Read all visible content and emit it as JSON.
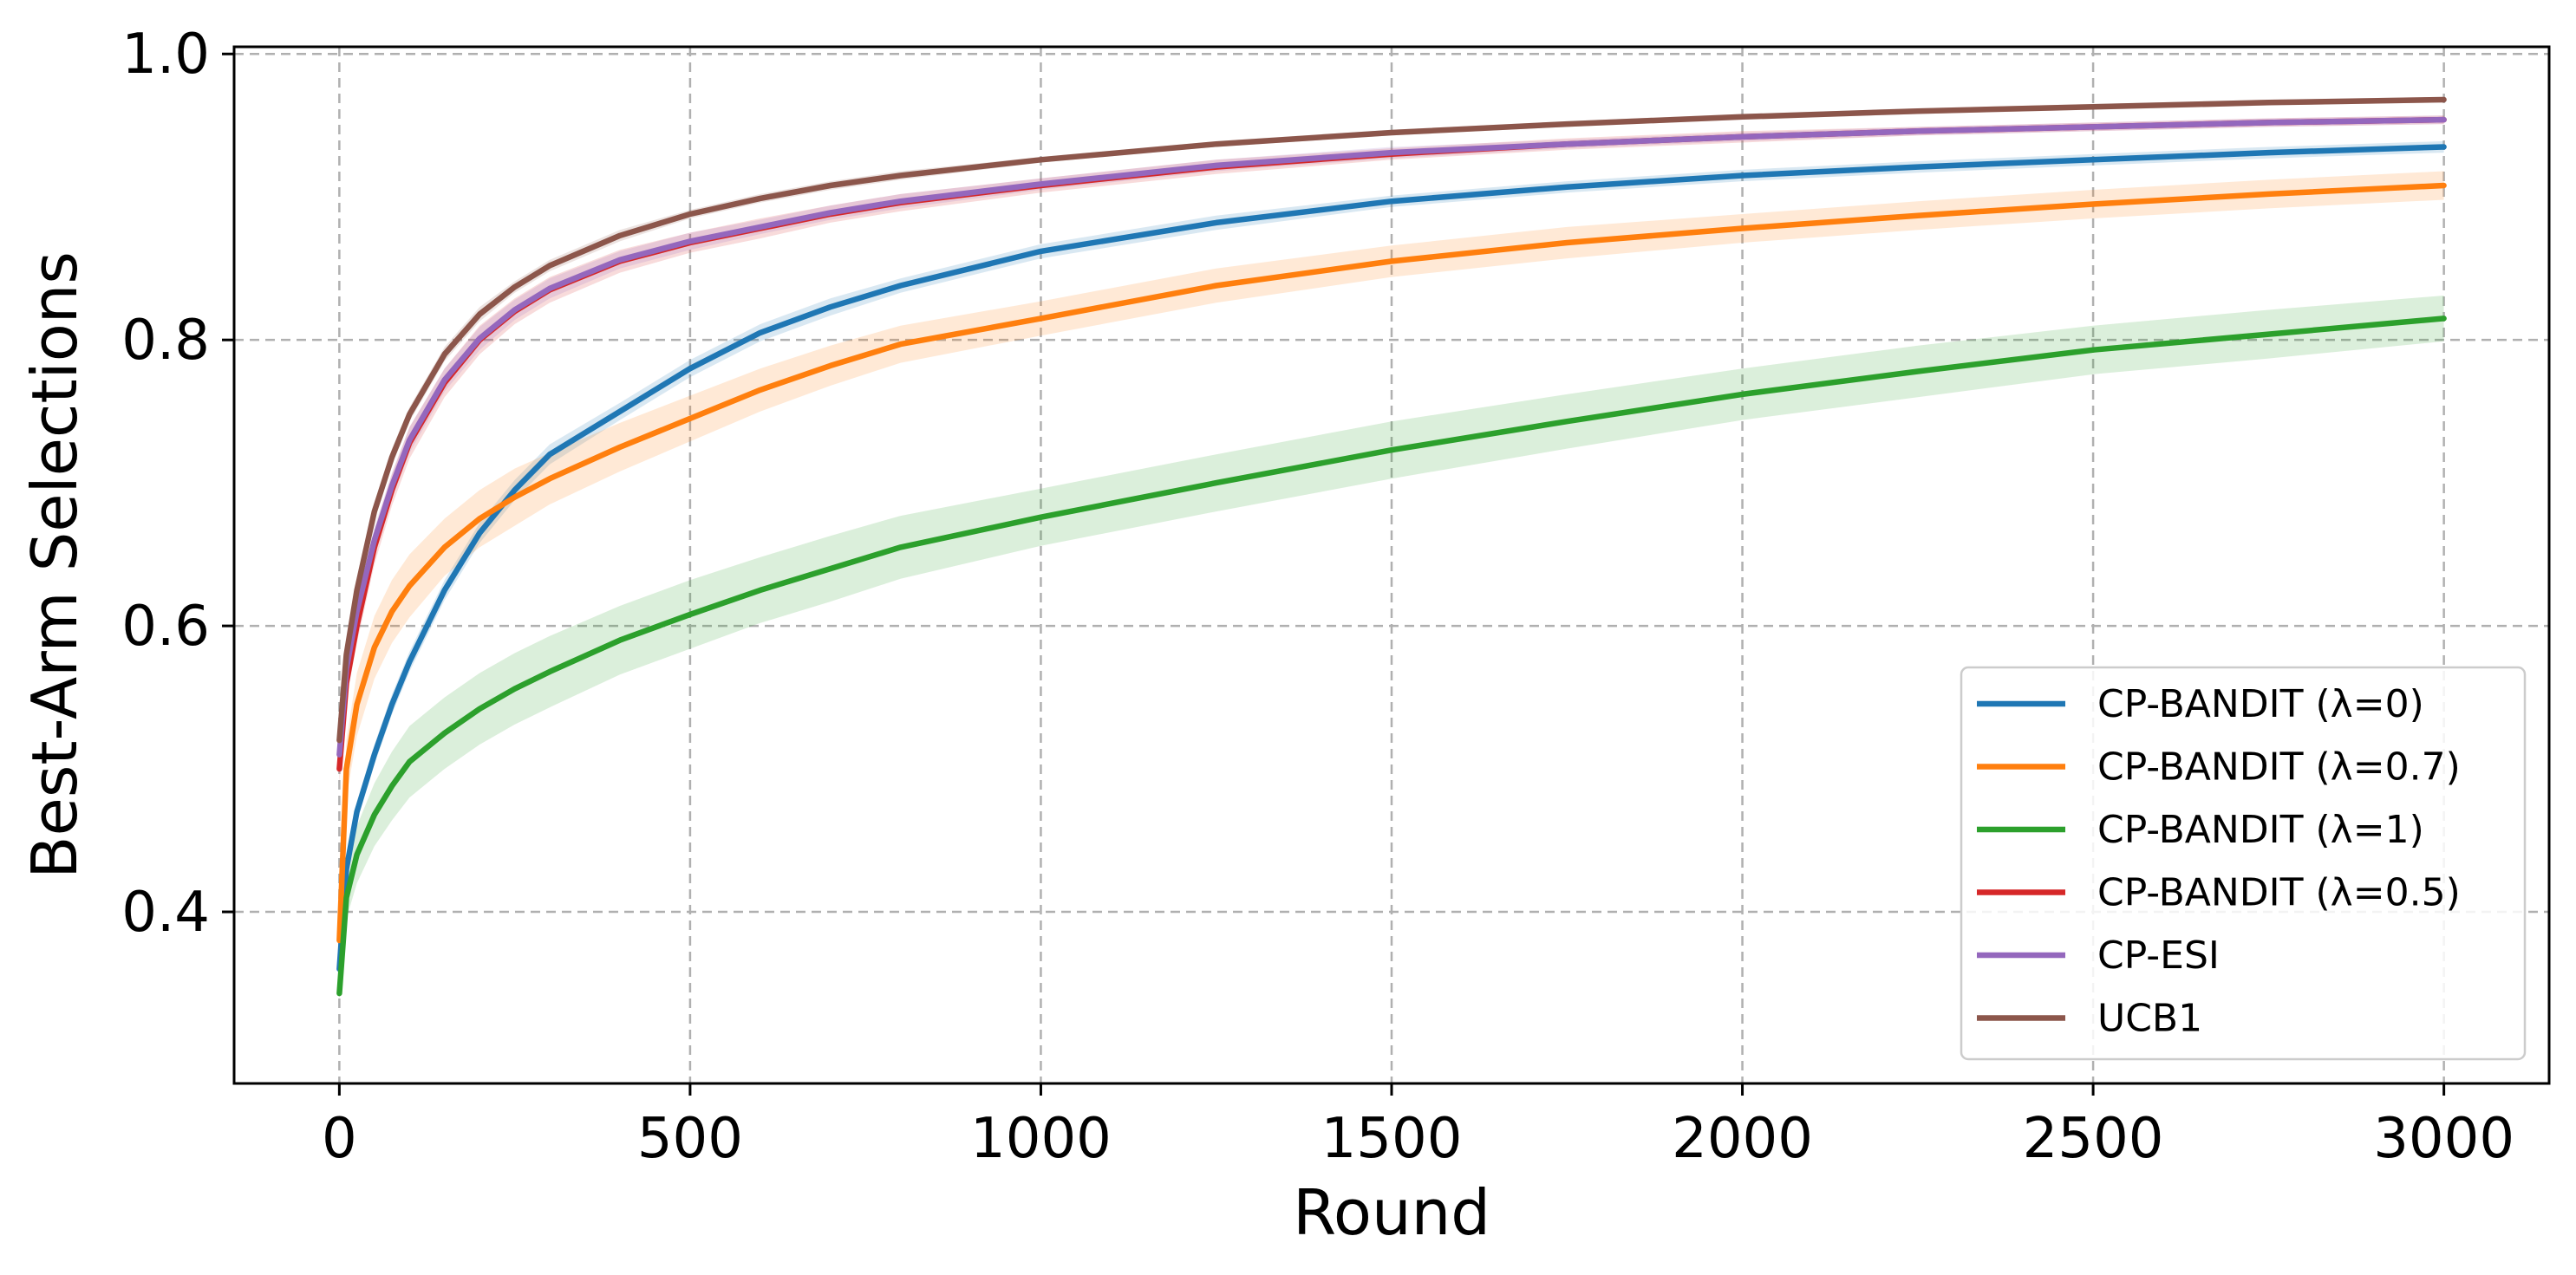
{
  "chart_data": {
    "type": "line",
    "title": "",
    "xlabel": "Round",
    "ylabel": "Best-Arm Selections",
    "xlim": [
      -150,
      3150
    ],
    "ylim": [
      0.28,
      1.005
    ],
    "x_ticks": [
      0,
      500,
      1000,
      1500,
      2000,
      2500,
      3000
    ],
    "x_tick_labels": [
      "0",
      "500",
      "1000",
      "1500",
      "2000",
      "2500",
      "3000"
    ],
    "y_ticks": [
      0.4,
      0.6,
      0.8,
      1.0
    ],
    "y_tick_labels": [
      "0.4",
      "0.6",
      "0.8",
      "1.0"
    ],
    "grid": true,
    "legend_position": "lower-right",
    "x": [
      0,
      10,
      25,
      50,
      75,
      100,
      150,
      200,
      250,
      300,
      400,
      500,
      600,
      700,
      800,
      1000,
      1250,
      1500,
      1750,
      2000,
      2250,
      2500,
      2750,
      3000
    ],
    "series": [
      {
        "name": "CP-BANDIT (λ=0)",
        "color": "#1f77b4",
        "values": [
          0.36,
          0.43,
          0.47,
          0.51,
          0.545,
          0.575,
          0.625,
          0.665,
          0.695,
          0.72,
          0.75,
          0.78,
          0.805,
          0.823,
          0.838,
          0.862,
          0.882,
          0.897,
          0.907,
          0.915,
          0.921,
          0.926,
          0.931,
          0.935
        ],
        "band": [
          0.005,
          0.006,
          0.007,
          0.007,
          0.007,
          0.007,
          0.007,
          0.007,
          0.007,
          0.007,
          0.006,
          0.006,
          0.006,
          0.006,
          0.005,
          0.005,
          0.005,
          0.004,
          0.004,
          0.004,
          0.004,
          0.004,
          0.004,
          0.004
        ]
      },
      {
        "name": "CP-BANDIT (λ=0.7)",
        "color": "#ff7f0e",
        "values": [
          0.38,
          0.5,
          0.545,
          0.585,
          0.61,
          0.628,
          0.655,
          0.675,
          0.69,
          0.703,
          0.725,
          0.745,
          0.765,
          0.782,
          0.797,
          0.815,
          0.838,
          0.855,
          0.868,
          0.878,
          0.887,
          0.895,
          0.902,
          0.908
        ],
        "band": [
          0.01,
          0.02,
          0.022,
          0.022,
          0.022,
          0.022,
          0.02,
          0.02,
          0.02,
          0.018,
          0.017,
          0.016,
          0.015,
          0.014,
          0.013,
          0.012,
          0.012,
          0.011,
          0.011,
          0.01,
          0.01,
          0.01,
          0.01,
          0.01
        ]
      },
      {
        "name": "CP-BANDIT (λ=1)",
        "color": "#2ca02c",
        "values": [
          0.343,
          0.41,
          0.44,
          0.468,
          0.488,
          0.505,
          0.525,
          0.542,
          0.556,
          0.568,
          0.59,
          0.608,
          0.625,
          0.64,
          0.655,
          0.676,
          0.7,
          0.723,
          0.743,
          0.762,
          0.778,
          0.793,
          0.804,
          0.815
        ],
        "band": [
          0.005,
          0.015,
          0.02,
          0.022,
          0.024,
          0.025,
          0.025,
          0.025,
          0.025,
          0.025,
          0.024,
          0.024,
          0.023,
          0.023,
          0.022,
          0.02,
          0.02,
          0.02,
          0.019,
          0.018,
          0.018,
          0.017,
          0.017,
          0.016
        ]
      },
      {
        "name": "CP-BANDIT (λ=0.5)",
        "color": "#d62728",
        "values": [
          0.5,
          0.56,
          0.6,
          0.655,
          0.695,
          0.728,
          0.77,
          0.8,
          0.82,
          0.835,
          0.855,
          0.868,
          0.878,
          0.888,
          0.896,
          0.908,
          0.921,
          0.93,
          0.937,
          0.942,
          0.946,
          0.949,
          0.952,
          0.954
        ],
        "band": [
          0.01,
          0.012,
          0.012,
          0.012,
          0.011,
          0.011,
          0.01,
          0.01,
          0.009,
          0.009,
          0.008,
          0.007,
          0.007,
          0.006,
          0.006,
          0.005,
          0.005,
          0.004,
          0.004,
          0.004,
          0.003,
          0.003,
          0.003,
          0.003
        ]
      },
      {
        "name": "CP-ESI",
        "color": "#9467bd",
        "values": [
          0.51,
          0.57,
          0.61,
          0.66,
          0.698,
          0.73,
          0.772,
          0.801,
          0.821,
          0.836,
          0.856,
          0.869,
          0.879,
          0.889,
          0.897,
          0.909,
          0.922,
          0.931,
          0.937,
          0.942,
          0.946,
          0.949,
          0.952,
          0.954
        ],
        "band": [
          0.008,
          0.009,
          0.009,
          0.009,
          0.009,
          0.009,
          0.008,
          0.008,
          0.007,
          0.007,
          0.006,
          0.006,
          0.005,
          0.005,
          0.005,
          0.004,
          0.004,
          0.004,
          0.003,
          0.003,
          0.003,
          0.003,
          0.003,
          0.003
        ]
      },
      {
        "name": "UCB1",
        "color": "#8c564b",
        "values": [
          0.52,
          0.58,
          0.625,
          0.68,
          0.718,
          0.748,
          0.79,
          0.818,
          0.837,
          0.852,
          0.873,
          0.888,
          0.899,
          0.908,
          0.915,
          0.926,
          0.937,
          0.945,
          0.951,
          0.956,
          0.96,
          0.963,
          0.966,
          0.968
        ],
        "band": [
          0.006,
          0.006,
          0.006,
          0.006,
          0.006,
          0.005,
          0.005,
          0.005,
          0.004,
          0.004,
          0.004,
          0.003,
          0.003,
          0.003,
          0.003,
          0.002,
          0.002,
          0.002,
          0.002,
          0.002,
          0.002,
          0.002,
          0.002,
          0.002
        ]
      }
    ]
  }
}
